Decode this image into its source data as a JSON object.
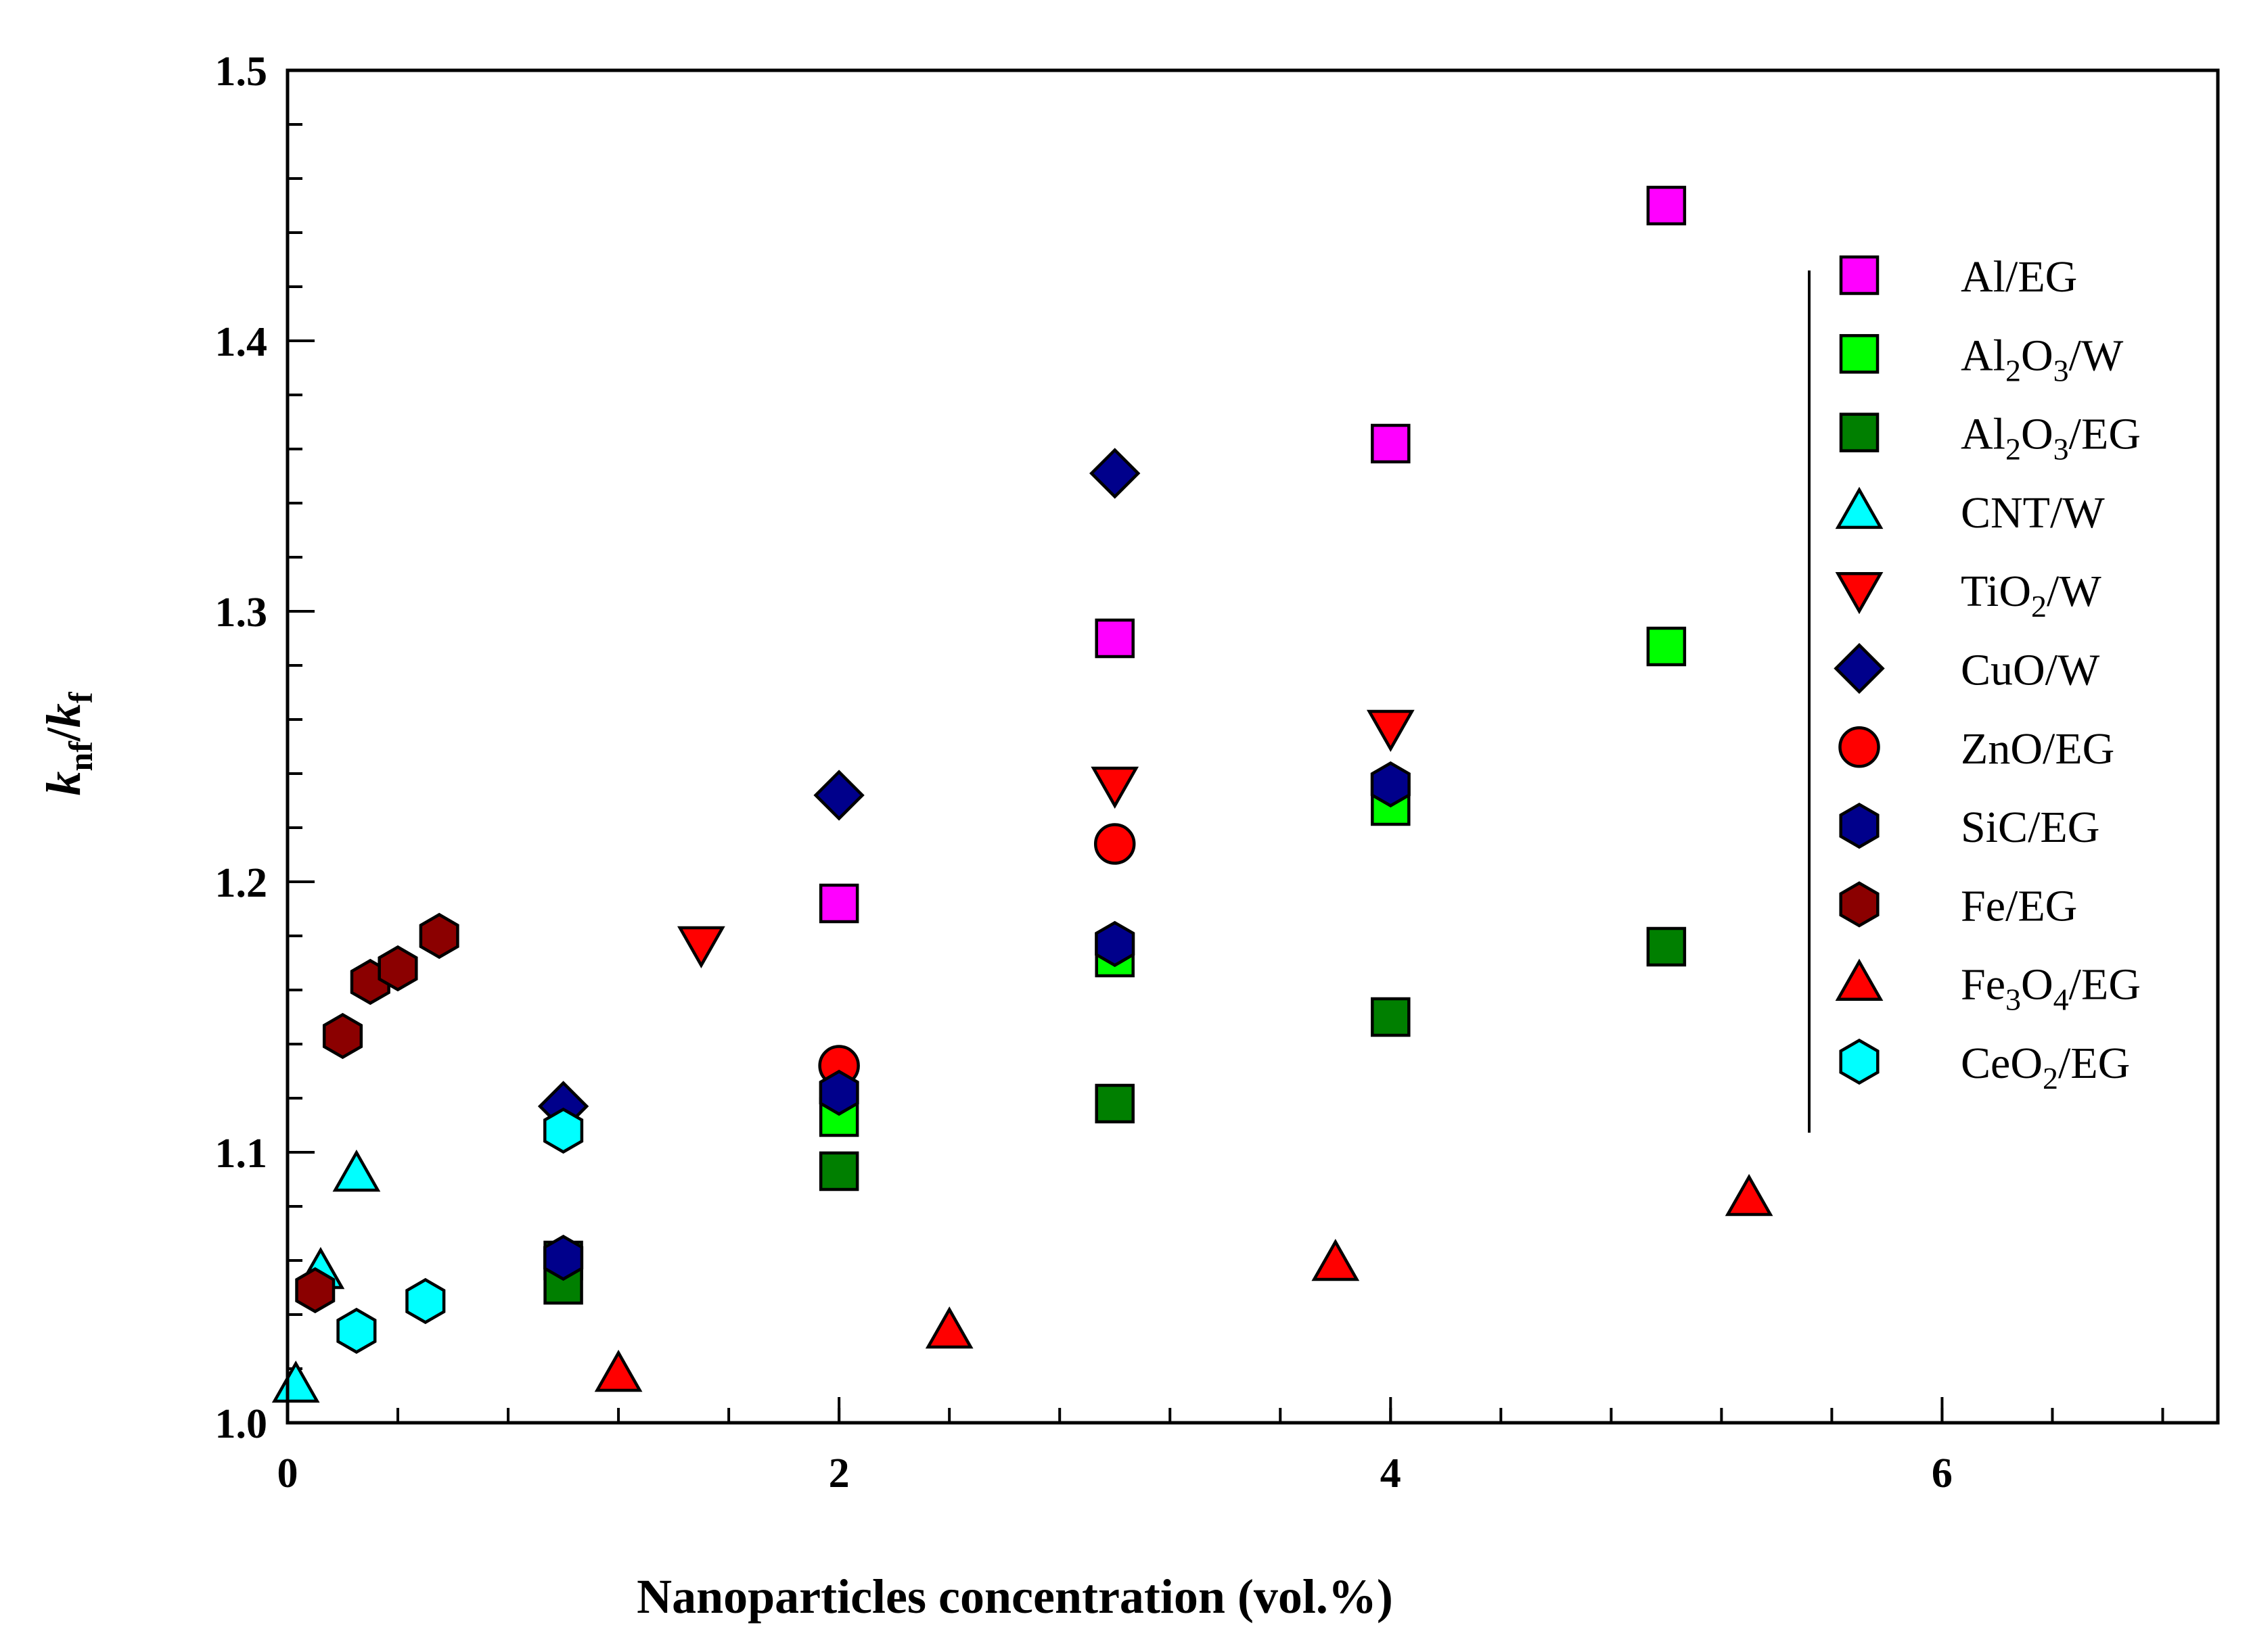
{
  "chart_data": {
    "type": "scatter",
    "title": "",
    "xlabel": "Nanoparticles concentration (vol.%)",
    "ylabel": {
      "k1": "k",
      "sub1": "nf",
      "slash": "/",
      "k2": "k",
      "sub2": "f"
    },
    "xlim": [
      0,
      7
    ],
    "ylim": [
      1.0,
      1.5
    ],
    "x_ticks": [
      0,
      2,
      4,
      6
    ],
    "x_tick_labels": [
      "0",
      "2",
      "4",
      "6"
    ],
    "y_ticks": [
      1.0,
      1.1,
      1.2,
      1.3,
      1.4,
      1.5
    ],
    "y_tick_labels": [
      "1.0",
      "1.1",
      "1.2",
      "1.3",
      "1.4",
      "1.5"
    ],
    "grid": false,
    "legend_position": "right",
    "series": [
      {
        "name": "Al/EG",
        "label_parts": [
          "Al/EG"
        ],
        "marker": "square",
        "color": "#ff00ff",
        "points": [
          [
            2,
            1.192
          ],
          [
            3,
            1.29
          ],
          [
            4,
            1.362
          ],
          [
            5,
            1.45
          ]
        ]
      },
      {
        "name": "Al2O3/W",
        "label_parts": [
          "Al",
          "2",
          "O",
          "3",
          "/W"
        ],
        "marker": "square",
        "color": "#00ff00",
        "points": [
          [
            1,
            1.06
          ],
          [
            2,
            1.113
          ],
          [
            3,
            1.172
          ],
          [
            4,
            1.228
          ],
          [
            5,
            1.287
          ]
        ]
      },
      {
        "name": "Al2O3/EG",
        "label_parts": [
          "Al",
          "2",
          "O",
          "3",
          "/EG"
        ],
        "marker": "square",
        "color": "#007f00",
        "points": [
          [
            1,
            1.051
          ],
          [
            2,
            1.093
          ],
          [
            3,
            1.118
          ],
          [
            4,
            1.15
          ],
          [
            5,
            1.176
          ]
        ]
      },
      {
        "name": "CNT/W",
        "label_parts": [
          "CNT/W"
        ],
        "marker": "triangle-up",
        "color": "#00ffff",
        "points": [
          [
            0.03,
            1.014
          ],
          [
            0.12,
            1.056
          ],
          [
            0.25,
            1.092
          ]
        ]
      },
      {
        "name": "TiO2/W",
        "label_parts": [
          "TiO",
          "2",
          "/W"
        ],
        "marker": "triangle-down",
        "color": "#ff0000",
        "points": [
          [
            1.5,
            1.177
          ],
          [
            3,
            1.236
          ],
          [
            4,
            1.257
          ]
        ]
      },
      {
        "name": "CuO/W",
        "label_parts": [
          "CuO/W"
        ],
        "marker": "diamond",
        "color": "#00008b",
        "points": [
          [
            1,
            1.117
          ],
          [
            2,
            1.232
          ],
          [
            3,
            1.351
          ]
        ]
      },
      {
        "name": "ZnO/EG",
        "label_parts": [
          "ZnO/EG"
        ],
        "marker": "circle",
        "color": "#ff0000",
        "points": [
          [
            2,
            1.132
          ],
          [
            3,
            1.214
          ]
        ]
      },
      {
        "name": "SiC/EG",
        "label_parts": [
          "SiC/EG"
        ],
        "marker": "hexagon",
        "color": "#00008b",
        "points": [
          [
            1,
            1.061
          ],
          [
            2,
            1.122
          ],
          [
            3,
            1.177
          ],
          [
            4,
            1.236
          ]
        ]
      },
      {
        "name": "Fe/EG",
        "label_parts": [
          "Fe/EG"
        ],
        "marker": "hexagon",
        "color": "#8b0000",
        "points": [
          [
            0.1,
            1.049
          ],
          [
            0.2,
            1.143
          ],
          [
            0.3,
            1.163
          ],
          [
            0.4,
            1.168
          ],
          [
            0.55,
            1.18
          ]
        ]
      },
      {
        "name": "Fe3O4/EG",
        "label_parts": [
          "Fe",
          "3",
          "O",
          "4",
          "/EG"
        ],
        "marker": "triangle-up",
        "color": "#ff0000",
        "points": [
          [
            1.2,
            1.018
          ],
          [
            2.4,
            1.034
          ],
          [
            3.8,
            1.059
          ],
          [
            5.3,
            1.083
          ]
        ]
      },
      {
        "name": "CeO2/EG",
        "label_parts": [
          "CeO",
          "2",
          "/EG"
        ],
        "marker": "hexagon",
        "color": "#00ffff",
        "points": [
          [
            0.25,
            1.034
          ],
          [
            0.5,
            1.045
          ],
          [
            1,
            1.108
          ]
        ]
      }
    ]
  }
}
